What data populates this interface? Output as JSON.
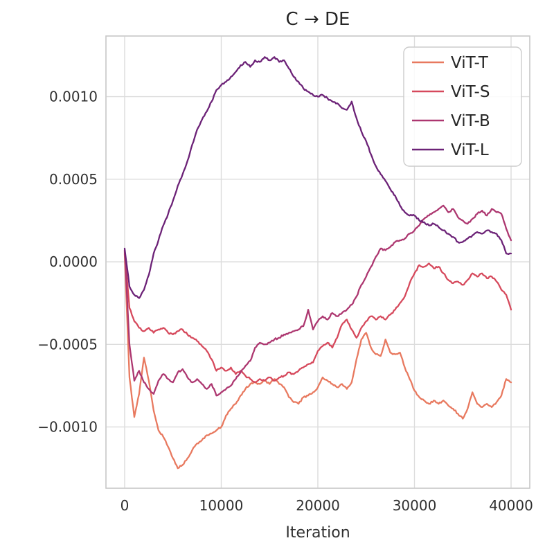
{
  "figure": {
    "title": "C → DE",
    "xlabel": "Iteration"
  },
  "chart_data": {
    "type": "line",
    "title": "C → DE",
    "xlabel": "Iteration",
    "ylabel": "",
    "grid": true,
    "legend_position": "upper right",
    "xlim": [
      -1935,
      41935
    ],
    "ylim": [
      -0.001371,
      0.001367
    ],
    "x_ticks": [
      0,
      10000,
      20000,
      30000,
      40000
    ],
    "x_tick_labels": [
      "0",
      "10000",
      "20000",
      "30000",
      "40000"
    ],
    "y_ticks": [
      0.001,
      0.0005,
      0.0,
      -0.0005,
      -0.001
    ],
    "y_tick_labels": [
      "0.0010",
      "0.0005",
      "0.0000",
      "−0.0005",
      "−0.0010"
    ],
    "x_step": 500,
    "series": [
      {
        "name": "ViT-T",
        "color": "#e8795f",
        "values": [
          5e-05,
          -0.0007,
          -0.00094,
          -0.0008,
          -0.00058,
          -0.00072,
          -0.0009,
          -0.00102,
          -0.00106,
          -0.00112,
          -0.00119,
          -0.00125,
          -0.00123,
          -0.00119,
          -0.00114,
          -0.0011,
          -0.00108,
          -0.00105,
          -0.00104,
          -0.00102,
          -0.001,
          -0.00093,
          -0.00089,
          -0.00086,
          -0.00081,
          -0.00077,
          -0.00074,
          -0.00073,
          -0.00074,
          -0.00072,
          -0.00074,
          -0.00071,
          -0.00074,
          -0.00076,
          -0.00082,
          -0.00085,
          -0.00086,
          -0.00082,
          -0.00081,
          -0.00079,
          -0.00076,
          -0.0007,
          -0.00072,
          -0.00074,
          -0.00076,
          -0.00074,
          -0.00077,
          -0.00073,
          -0.00059,
          -0.00047,
          -0.00043,
          -0.00052,
          -0.00056,
          -0.00057,
          -0.00047,
          -0.00055,
          -0.00056,
          -0.00055,
          -0.00064,
          -0.00071,
          -0.00078,
          -0.00082,
          -0.00084,
          -0.00086,
          -0.00084,
          -0.00086,
          -0.00084,
          -0.00087,
          -0.00089,
          -0.00092,
          -0.00095,
          -0.00089,
          -0.00079,
          -0.00086,
          -0.00088,
          -0.00086,
          -0.00088,
          -0.00085,
          -0.00081,
          -0.00071,
          -0.00073
        ]
      },
      {
        "name": "ViT-S",
        "color": "#d6495c",
        "values": [
          6e-05,
          -0.00028,
          -0.00036,
          -0.0004,
          -0.00042,
          -0.0004,
          -0.00043,
          -0.00041,
          -0.0004,
          -0.00043,
          -0.00044,
          -0.00042,
          -0.00041,
          -0.00044,
          -0.00046,
          -0.00048,
          -0.00051,
          -0.00054,
          -0.00059,
          -0.00066,
          -0.00064,
          -0.00066,
          -0.00064,
          -0.00068,
          -0.00066,
          -0.00069,
          -0.00071,
          -0.00073,
          -0.00071,
          -0.00072,
          -0.0007,
          -0.00072,
          -0.0007,
          -0.00069,
          -0.00067,
          -0.00068,
          -0.00066,
          -0.00064,
          -0.00062,
          -0.00061,
          -0.00054,
          -0.00051,
          -0.00049,
          -0.00052,
          -0.00046,
          -0.00038,
          -0.00035,
          -0.00041,
          -0.00046,
          -0.0004,
          -0.00036,
          -0.00033,
          -0.00035,
          -0.00033,
          -0.00035,
          -0.00032,
          -0.00029,
          -0.00025,
          -0.00021,
          -0.00013,
          -7e-05,
          -2e-05,
          -3e-05,
          -1e-05,
          -4e-05,
          -3e-05,
          -7e-05,
          -0.00011,
          -0.00013,
          -0.00012,
          -0.00014,
          -0.00011,
          -7e-05,
          -9e-05,
          -7e-05,
          -0.0001,
          -9e-05,
          -0.00012,
          -0.00017,
          -0.0002,
          -0.00029
        ]
      },
      {
        "name": "ViT-B",
        "color": "#ad3770",
        "values": [
          7e-05,
          -0.0005,
          -0.00072,
          -0.00066,
          -0.00073,
          -0.00077,
          -0.0008,
          -0.00072,
          -0.00068,
          -0.00071,
          -0.00073,
          -0.00067,
          -0.00065,
          -0.0007,
          -0.00073,
          -0.00071,
          -0.00074,
          -0.00077,
          -0.00074,
          -0.00081,
          -0.00079,
          -0.00077,
          -0.00075,
          -0.00071,
          -0.00067,
          -0.00063,
          -0.0006,
          -0.00052,
          -0.00049,
          -0.0005,
          -0.00049,
          -0.00047,
          -0.00046,
          -0.00044,
          -0.00043,
          -0.00042,
          -0.00041,
          -0.00039,
          -0.00029,
          -0.00041,
          -0.00036,
          -0.00033,
          -0.00035,
          -0.00031,
          -0.00033,
          -0.00031,
          -0.00029,
          -0.00026,
          -0.00021,
          -0.00014,
          -9e-05,
          -3e-05,
          3e-05,
          8e-05,
          7e-05,
          9e-05,
          0.00012,
          0.00013,
          0.00014,
          0.00017,
          0.00019,
          0.00022,
          0.00026,
          0.00028,
          0.0003,
          0.00032,
          0.00034,
          0.0003,
          0.00032,
          0.00027,
          0.00025,
          0.00023,
          0.00026,
          0.00029,
          0.00031,
          0.00028,
          0.00032,
          0.0003,
          0.00029,
          0.0002,
          0.00013
        ]
      },
      {
        "name": "ViT-L",
        "color": "#6c2277",
        "values": [
          8e-05,
          -0.00015,
          -0.0002,
          -0.00022,
          -0.00017,
          -8e-05,
          5e-05,
          0.00013,
          0.00022,
          0.00029,
          0.00037,
          0.00046,
          0.00053,
          0.00061,
          0.00071,
          0.0008,
          0.00086,
          0.00091,
          0.00097,
          0.00104,
          0.00107,
          0.00109,
          0.00112,
          0.00115,
          0.00119,
          0.00121,
          0.00118,
          0.00122,
          0.00121,
          0.00124,
          0.00122,
          0.00124,
          0.00121,
          0.00122,
          0.00117,
          0.00112,
          0.00109,
          0.00105,
          0.00103,
          0.00101,
          0.001,
          0.00101,
          0.00099,
          0.00097,
          0.00096,
          0.00093,
          0.00092,
          0.00097,
          0.00087,
          0.00079,
          0.00073,
          0.00065,
          0.00058,
          0.00053,
          0.00049,
          0.00044,
          0.0004,
          0.00034,
          0.0003,
          0.00028,
          0.00028,
          0.00025,
          0.00024,
          0.00022,
          0.00023,
          0.00021,
          0.00019,
          0.00017,
          0.00015,
          0.00012,
          0.00012,
          0.00014,
          0.00016,
          0.00018,
          0.00017,
          0.00019,
          0.00018,
          0.00017,
          0.00013,
          5e-05,
          5e-05
        ]
      }
    ]
  },
  "style": {
    "grid_color": "#dcdcdc",
    "spine_color": "#c9c9c9",
    "text_color": "#262626",
    "background": "#ffffff",
    "legend_border": "#cccccc"
  }
}
